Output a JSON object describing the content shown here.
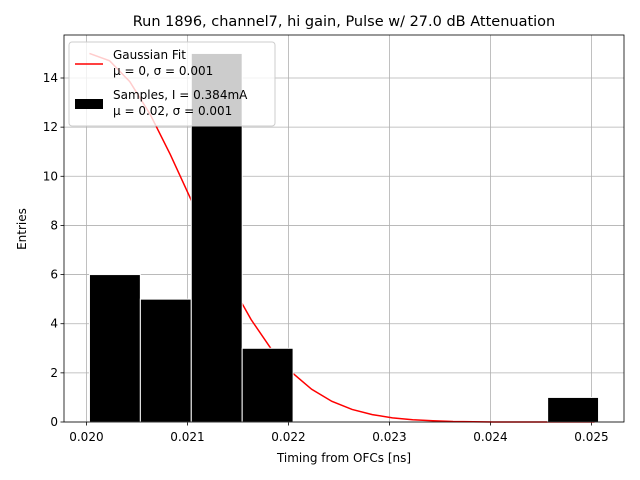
{
  "chart_data": {
    "type": "histogram",
    "title": "Run 1896, channel7, hi gain, Pulse w/ 27.0 dB Attenuation",
    "xlabel": "Timing from OFCs [ns]",
    "ylabel": "Entries",
    "bins": [
      0.02003,
      0.020534,
      0.021038,
      0.021542,
      0.022046,
      0.02255,
      0.023054,
      0.023558,
      0.024062,
      0.024566,
      0.02507
    ],
    "series": [
      {
        "name": "Gaussian Fit\nμ = 0, σ = 0.001",
        "type": "line",
        "color": "#ff0000",
        "x": [
          0.02003,
          0.02023,
          0.02043,
          0.02063,
          0.02083,
          0.02103,
          0.02123,
          0.02143,
          0.02163,
          0.02183,
          0.02203,
          0.02223,
          0.02243,
          0.02263,
          0.02283,
          0.02303,
          0.02323,
          0.02343,
          0.02363,
          0.02383,
          0.02403,
          0.02423,
          0.02443,
          0.02463,
          0.02483,
          0.02503
        ],
        "values": [
          15,
          14.7,
          13.85,
          12.53,
          10.89,
          9.1,
          7.3,
          5.63,
          4.17,
          2.97,
          2.03,
          1.33,
          0.84,
          0.51,
          0.3,
          0.17,
          0.09,
          0.05,
          0.02,
          0.01,
          0,
          0,
          0,
          0,
          0,
          0
        ]
      },
      {
        "name": "Samples, I = 0.384mA\nμ = 0.02, σ = 0.001",
        "type": "histogram",
        "color": "#000000",
        "values": [
          6,
          5,
          15,
          3,
          0,
          0,
          0,
          0,
          0,
          1
        ]
      }
    ],
    "xlim": [
      0.019778,
      0.025322
    ],
    "ylim": [
      0,
      15.75
    ],
    "xticks": [
      {
        "value": 0.02,
        "label": "0.020"
      },
      {
        "value": 0.021,
        "label": "0.021"
      },
      {
        "value": 0.022,
        "label": "0.022"
      },
      {
        "value": 0.023,
        "label": "0.023"
      },
      {
        "value": 0.024,
        "label": "0.024"
      },
      {
        "value": 0.025,
        "label": "0.025"
      }
    ],
    "yticks": [
      0,
      2,
      4,
      6,
      8,
      10,
      12,
      14
    ],
    "grid": true,
    "legend": "upper left"
  }
}
